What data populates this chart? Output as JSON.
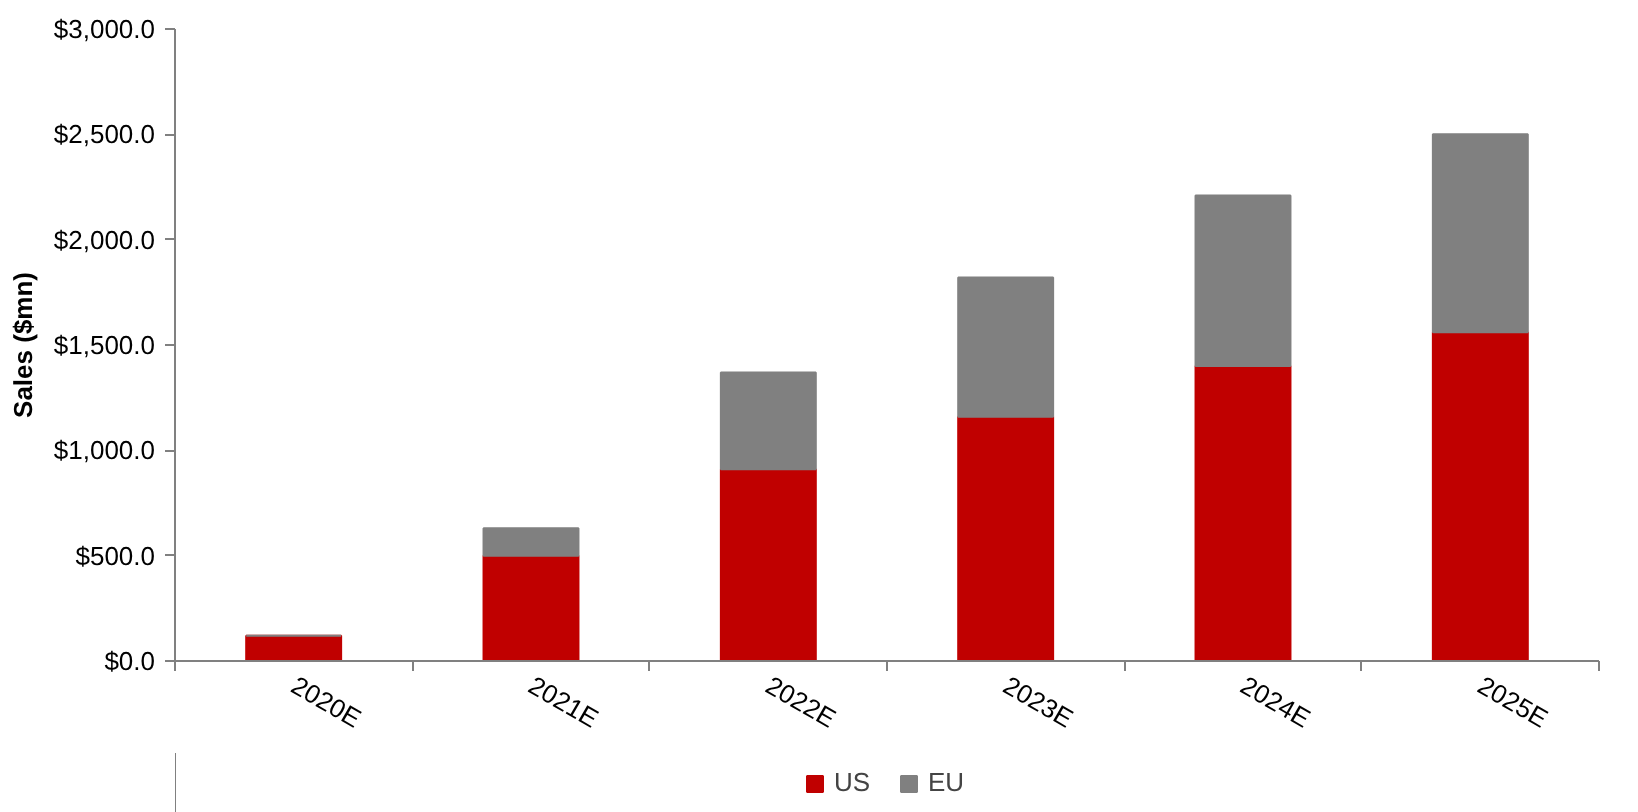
{
  "chart_data": {
    "type": "bar",
    "stacked": true,
    "ylabel": "Sales ($mn)",
    "categories": [
      "2020E",
      "2021E",
      "2022E",
      "2023E",
      "2024E",
      "2025E"
    ],
    "series": [
      {
        "name": "US",
        "color": "#c00000",
        "values": [
          120,
          500,
          910,
          1160,
          1400,
          1560
        ]
      },
      {
        "name": "EU",
        "color": "#808080",
        "values": [
          0,
          130,
          460,
          660,
          810,
          940
        ]
      }
    ],
    "ylim": [
      0,
      3000
    ],
    "yticks": [
      {
        "value": 0,
        "label": "$0.0"
      },
      {
        "value": 500,
        "label": "$500.0"
      },
      {
        "value": 1000,
        "label": "$1,000.0"
      },
      {
        "value": 1500,
        "label": "$1,500.0"
      },
      {
        "value": 2000,
        "label": "$2,000.0"
      },
      {
        "value": 2500,
        "label": "$2,500.0"
      },
      {
        "value": 3000,
        "label": "$3,000.0"
      }
    ],
    "grid": false,
    "legend": "bottom"
  }
}
